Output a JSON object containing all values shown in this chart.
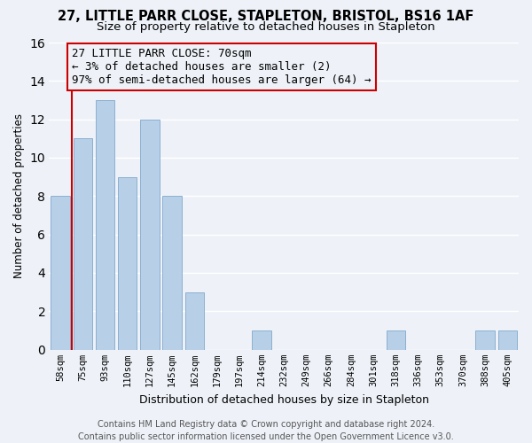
{
  "title1": "27, LITTLE PARR CLOSE, STAPLETON, BRISTOL, BS16 1AF",
  "title2": "Size of property relative to detached houses in Stapleton",
  "xlabel": "Distribution of detached houses by size in Stapleton",
  "ylabel": "Number of detached properties",
  "categories": [
    "58sqm",
    "75sqm",
    "93sqm",
    "110sqm",
    "127sqm",
    "145sqm",
    "162sqm",
    "179sqm",
    "197sqm",
    "214sqm",
    "232sqm",
    "249sqm",
    "266sqm",
    "284sqm",
    "301sqm",
    "318sqm",
    "336sqm",
    "353sqm",
    "370sqm",
    "388sqm",
    "405sqm"
  ],
  "values": [
    8,
    11,
    13,
    9,
    12,
    8,
    3,
    0,
    0,
    1,
    0,
    0,
    0,
    0,
    0,
    1,
    0,
    0,
    0,
    1,
    1
  ],
  "bar_color": "#b8cfe8",
  "bar_edge_color": "#8ab0d0",
  "reference_line_color": "#cc0000",
  "annotation_line1": "27 LITTLE PARR CLOSE: 70sqm",
  "annotation_line2": "← 3% of detached houses are smaller (2)",
  "annotation_line3": "97% of semi-detached houses are larger (64) →",
  "ylim": [
    0,
    16
  ],
  "yticks": [
    0,
    2,
    4,
    6,
    8,
    10,
    12,
    14,
    16
  ],
  "background_color": "#eef2f8",
  "grid_color": "#ffffff",
  "footer1": "Contains HM Land Registry data © Crown copyright and database right 2024.",
  "footer2": "Contains public sector information licensed under the Open Government Licence v3.0.",
  "title_fontsize": 10.5,
  "subtitle_fontsize": 9.5,
  "xlabel_fontsize": 9,
  "ylabel_fontsize": 8.5,
  "tick_fontsize": 7.5,
  "annotation_fontsize": 9,
  "footer_fontsize": 7
}
